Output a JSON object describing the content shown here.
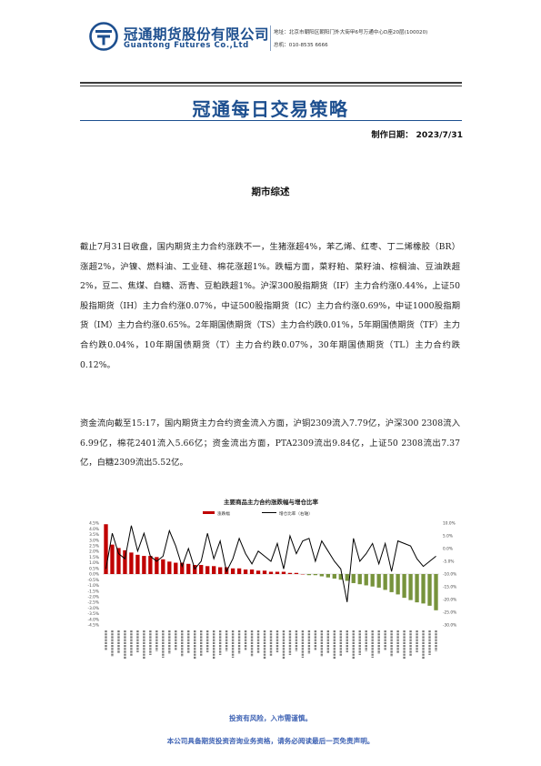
{
  "header": {
    "company_cn": "冠通期货股份有限公司",
    "company_en": "Guantong Futures Co.,Ltd",
    "address": "地址：北京市朝阳区朝阳门外大街甲6号万通中心D座20层(100020)",
    "phone": "总机：010-8535 6666"
  },
  "title": "冠通每日交易策略",
  "date_label": "制作日期：",
  "date_value": "2023/7/31",
  "section_heading": "期市综述",
  "paragraphs": [
    "截止7月31日收盘，国内期货主力合约涨跌不一，生猪涨超4%，苯乙烯、红枣、丁二烯橡胶（BR）涨超2%，沪镍、燃料油、工业硅、棉花涨超1%。跌幅方面，菜籽粕、菜籽油、棕榈油、豆油跌超2%，豆二、焦煤、白糖、沥青、豆粕跌超1%。沪深300股指期货（IF）主力合约涨0.44%，上证50股指期货（IH）主力合约涨0.07%，中证500股指期货（IC）主力合约涨0.69%，中证1000股指期货（IM）主力合约涨0.65%。2年期国债期货（TS）主力合约跌0.01%，5年期国债期货（TF）主力合约跌0.04%，10年期国债期货（T）主力合约跌0.07%，30年期国债期货（TL）主力合约跌0.12%。",
    "资金流向截至15:17，国内期货主力合约资金流入方面，沪铜2309流入7.79亿，沪深300 2308流入6.99亿，棉花2401流入5.66亿；资金流出方面，PTA2309流出9.84亿，上证50 2308流出7.37亿，白糖2309流出5.52亿。"
  ],
  "chart_data": {
    "type": "bar",
    "title": "主要商品主力合约涨跌幅与增仓比率",
    "series": [
      {
        "name": "涨跌幅",
        "axis": "left",
        "color": "#c00000",
        "color_negative": "#77933c",
        "values": [
          4.4,
          2.6,
          2.3,
          2.1,
          1.9,
          1.7,
          1.6,
          1.6,
          1.5,
          1.3,
          1.1,
          1.0,
          1.0,
          0.9,
          0.8,
          0.8,
          0.7,
          0.7,
          0.6,
          0.6,
          0.5,
          0.5,
          0.4,
          0.4,
          0.3,
          0.3,
          0.2,
          0.2,
          0.2,
          0.1,
          0.1,
          0.0,
          -0.1,
          -0.1,
          -0.2,
          -0.3,
          -0.4,
          -0.5,
          -0.6,
          -0.8,
          -0.9,
          -1.0,
          -1.1,
          -1.2,
          -1.4,
          -1.6,
          -1.8,
          -2.1,
          -2.3,
          -2.5,
          -2.6,
          -2.8,
          -3.2
        ]
      },
      {
        "name": "增仓比率",
        "axis": "right",
        "color": "#000000",
        "values": [
          -8,
          6,
          -2,
          -4,
          9,
          -1,
          6,
          -3,
          -5,
          -3,
          7,
          1,
          -7,
          0,
          -8,
          -5,
          6,
          -4,
          3,
          -9,
          -4,
          4,
          -2,
          -6,
          -1,
          -3,
          -5,
          2,
          -8,
          5,
          -2,
          3,
          4,
          -5,
          3,
          -1,
          -5,
          -8,
          -21,
          4,
          -5,
          -2,
          2,
          -6,
          2,
          -9,
          3,
          2,
          1,
          -4,
          -7,
          -5,
          -3
        ]
      }
    ],
    "legend_labels": [
      "涨跌幅",
      "增仓比率（右轴）"
    ],
    "legend_position": "top-center",
    "y_left_ticks": [
      "4.5%",
      "4.0%",
      "3.5%",
      "3.0%",
      "2.5%",
      "2.0%",
      "1.5%",
      "1.0%",
      "0.5%",
      "0.0%",
      "-0.5%",
      "-1.0%",
      "-1.5%",
      "-2.0%",
      "-2.5%",
      "-3.0%",
      "-3.5%",
      "-4.0%",
      "-4.5%"
    ],
    "y_right_ticks": [
      "10.0%",
      "5.0%",
      "0.0%",
      "-5.0%",
      "-10.0%",
      "-15.0%",
      "-20.0%",
      "-25.0%",
      "-30.0%"
    ],
    "ylim_left": [
      -4.5,
      4.5
    ],
    "ylim_right": [
      -30,
      10
    ],
    "grid": false
  },
  "footer": {
    "risk": "投资有风险，入市需谨慎。",
    "notice": "本公司具备期货投资咨询业务资格，请务必阅读最后一页免责声明。"
  },
  "colors": {
    "brand": "#1d4f8f",
    "footer_text": "#3f63b4",
    "bar_positive": "#c00000",
    "bar_negative": "#77933c",
    "line": "#000000"
  }
}
